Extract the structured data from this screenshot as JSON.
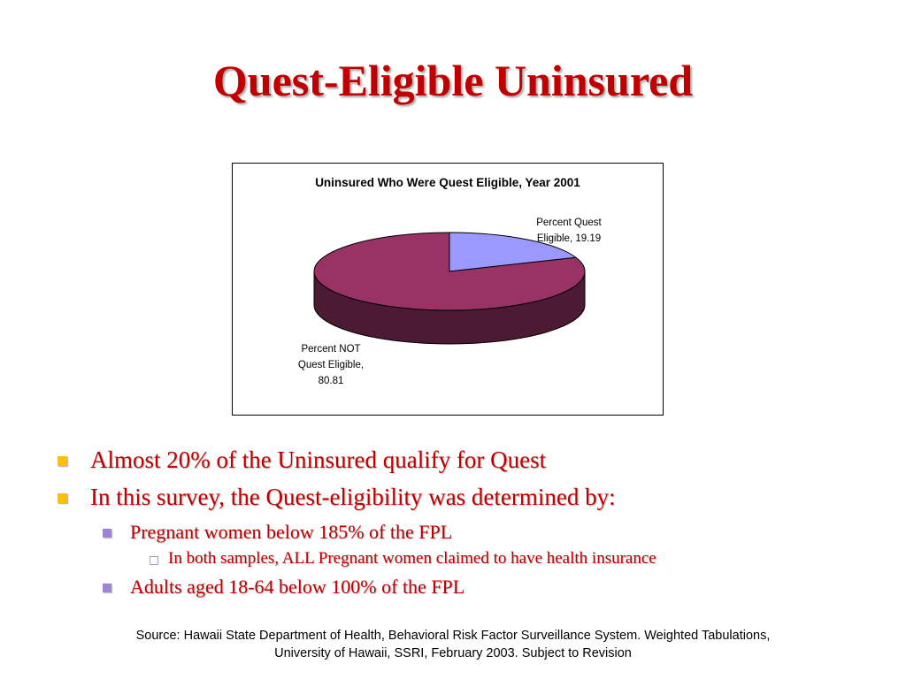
{
  "slide": {
    "title": "Quest-Eligible Uninsured",
    "bullets": [
      {
        "text": "Almost 20% of the Uninsured qualify for Quest"
      },
      {
        "text": "In this survey, the Quest-eligibility was determined by:"
      },
      {
        "text": "Pregnant women below 185% of the FPL"
      },
      {
        "text": "In both samples, ALL Pregnant women claimed to have health insurance"
      },
      {
        "text": "Adults aged 18-64 below 100% of the FPL"
      }
    ],
    "source_line1": "Source: Hawaii State Department of Health, Behavioral Risk Factor Surveillance System.  Weighted Tabulations,",
    "source_line2": "University of Hawaii, SSRI, February 2003.  Subject to Revision"
  },
  "colors": {
    "title": "#c00000",
    "bullet_level1": "#ffc000",
    "bullet_level2": "#9f84d6"
  },
  "chart_data": {
    "type": "pie",
    "style": "3d",
    "title": "Uninsured Who Were Quest Eligible, Year 2001",
    "slices": [
      {
        "label_lines": [
          "Percent Quest",
          "Eligible, 19.19"
        ],
        "value": 19.19,
        "color": "#9999ff",
        "side_color": "#6b6bb3"
      },
      {
        "label_lines": [
          "Percent NOT",
          "Quest Eligible,",
          "80.81"
        ],
        "value": 80.81,
        "color": "#993366",
        "side_color": "#4d1a33"
      }
    ]
  }
}
